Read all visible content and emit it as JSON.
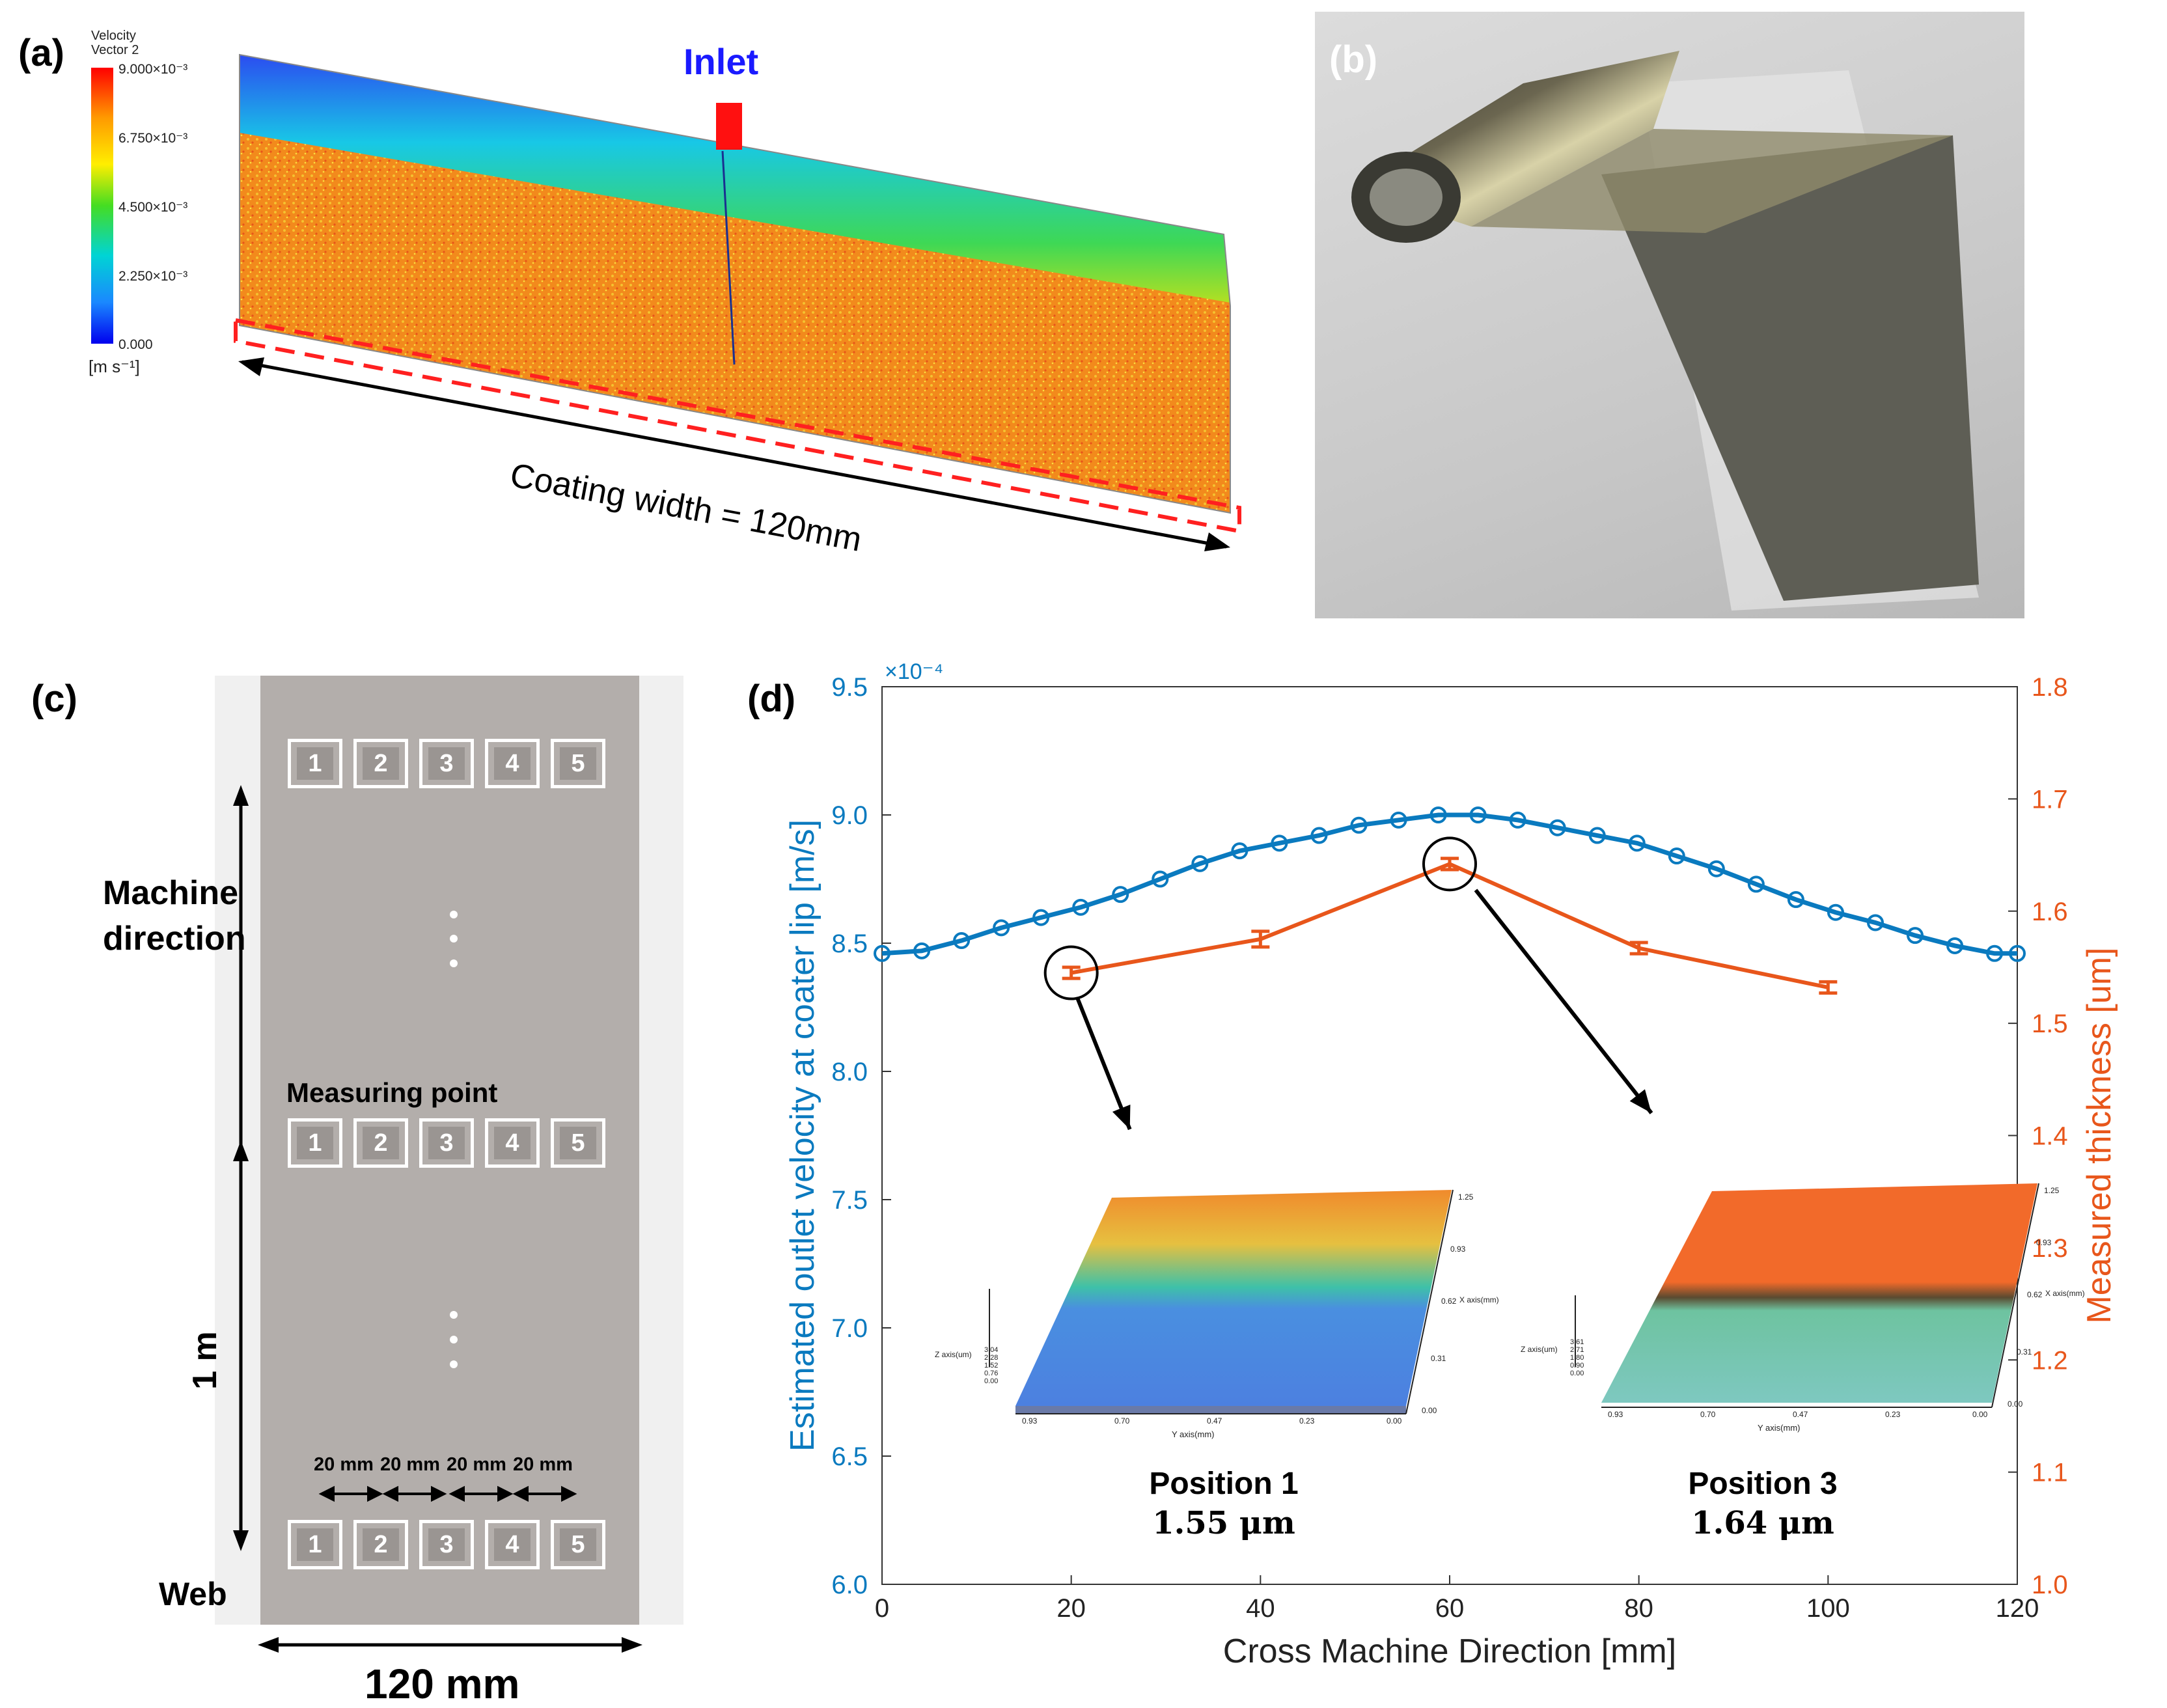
{
  "panel_a": {
    "label": "(a)",
    "legend_title_1": "Velocity",
    "legend_title_2": "Vector 2",
    "legend_ticks": [
      "9.000×10⁻³",
      "6.750×10⁻³",
      "4.500×10⁻³",
      "2.250×10⁻³",
      "0.000"
    ],
    "legend_unit": "[m s⁻¹]",
    "inlet_label": "Inlet",
    "width_label": "Coating width = 120mm",
    "colors": {
      "inlet": "#1a1aff",
      "dash": "#ff2020",
      "body": "#ff8a10"
    }
  },
  "panel_b": {
    "label": "(b)"
  },
  "panel_c": {
    "label": "(c)",
    "points": [
      "1",
      "2",
      "3",
      "4",
      "5"
    ],
    "machine_direction_1": "Machine",
    "machine_direction_2": "direction",
    "measuring_point": "Measuring point",
    "one_m": "1 m",
    "spacing": [
      "20 mm",
      "20 mm",
      "20 mm",
      "20 mm"
    ],
    "web": "Web",
    "width": "120 mm",
    "colors": {
      "web": "#b3aeab",
      "edge": "#f0f0f0"
    }
  },
  "panel_d": {
    "label": "(d)",
    "inset_left_title": "Position 1",
    "inset_left_value": "1.55 μm",
    "inset_right_title": "Position 3",
    "inset_right_value": "1.64 μm",
    "inset_axes": {
      "x": "X axis(mm)",
      "y": "Y axis(mm)",
      "z": "Z axis(um)"
    },
    "inset_left_z_ticks": [
      "3.04",
      "2.28",
      "1.52",
      "0.76",
      "0.00"
    ],
    "inset_right_z_ticks": [
      "3.61",
      "2.71",
      "1.80",
      "0.90",
      "0.00"
    ],
    "inset_y_ticks": [
      "0.93",
      "0.70",
      "0.47",
      "0.23",
      "0.00"
    ],
    "inset_x_ticks": [
      "1.25",
      "0.93",
      "0.62",
      "0.31",
      "0.00"
    ]
  },
  "chart_data": {
    "type": "line",
    "xlabel": "Cross Machine Direction [mm]",
    "ylabel": "Estimated outlet velocity at coater lip [m/s]",
    "y2label": "Measured thickness [um]",
    "y_exponent": "×10⁻⁴",
    "xlim": [
      0,
      120
    ],
    "ylim": [
      6.0,
      9.5
    ],
    "y2lim": [
      1.0,
      1.8
    ],
    "xticks": [
      0,
      20,
      40,
      60,
      80,
      100,
      120
    ],
    "yticks": [
      6.0,
      6.5,
      7.0,
      7.5,
      8.0,
      8.5,
      9.0,
      9.5
    ],
    "y2ticks": [
      1.0,
      1.1,
      1.2,
      1.3,
      1.4,
      1.5,
      1.6,
      1.7,
      1.8
    ],
    "series": [
      {
        "name": "Estimated outlet velocity",
        "axis": "left",
        "color": "#0a7abf",
        "marker": "circle",
        "x": [
          0,
          4.2,
          8.4,
          12.6,
          16.8,
          21,
          25.2,
          29.4,
          33.6,
          37.8,
          42,
          46.2,
          50.4,
          54.6,
          58.8,
          63,
          67.2,
          71.4,
          75.6,
          79.8,
          84,
          88.2,
          92.4,
          96.6,
          100.8,
          105,
          109.2,
          113.4,
          117.6,
          120
        ],
        "values": [
          8.46,
          8.47,
          8.51,
          8.56,
          8.6,
          8.64,
          8.69,
          8.75,
          8.81,
          8.86,
          8.89,
          8.92,
          8.96,
          8.98,
          9.0,
          9.0,
          8.98,
          8.95,
          8.92,
          8.89,
          8.84,
          8.79,
          8.73,
          8.67,
          8.62,
          8.58,
          8.53,
          8.49,
          8.46,
          8.46
        ]
      },
      {
        "name": "Measured thickness",
        "axis": "right",
        "color": "#e8561b",
        "marker": "errorbar",
        "x": [
          20,
          40,
          60,
          80,
          100
        ],
        "values": [
          1.545,
          1.575,
          1.642,
          1.567,
          1.532
        ],
        "errors": [
          0.005,
          0.007,
          0.005,
          0.005,
          0.005
        ]
      }
    ],
    "highlighted_points": [
      20,
      60
    ]
  }
}
